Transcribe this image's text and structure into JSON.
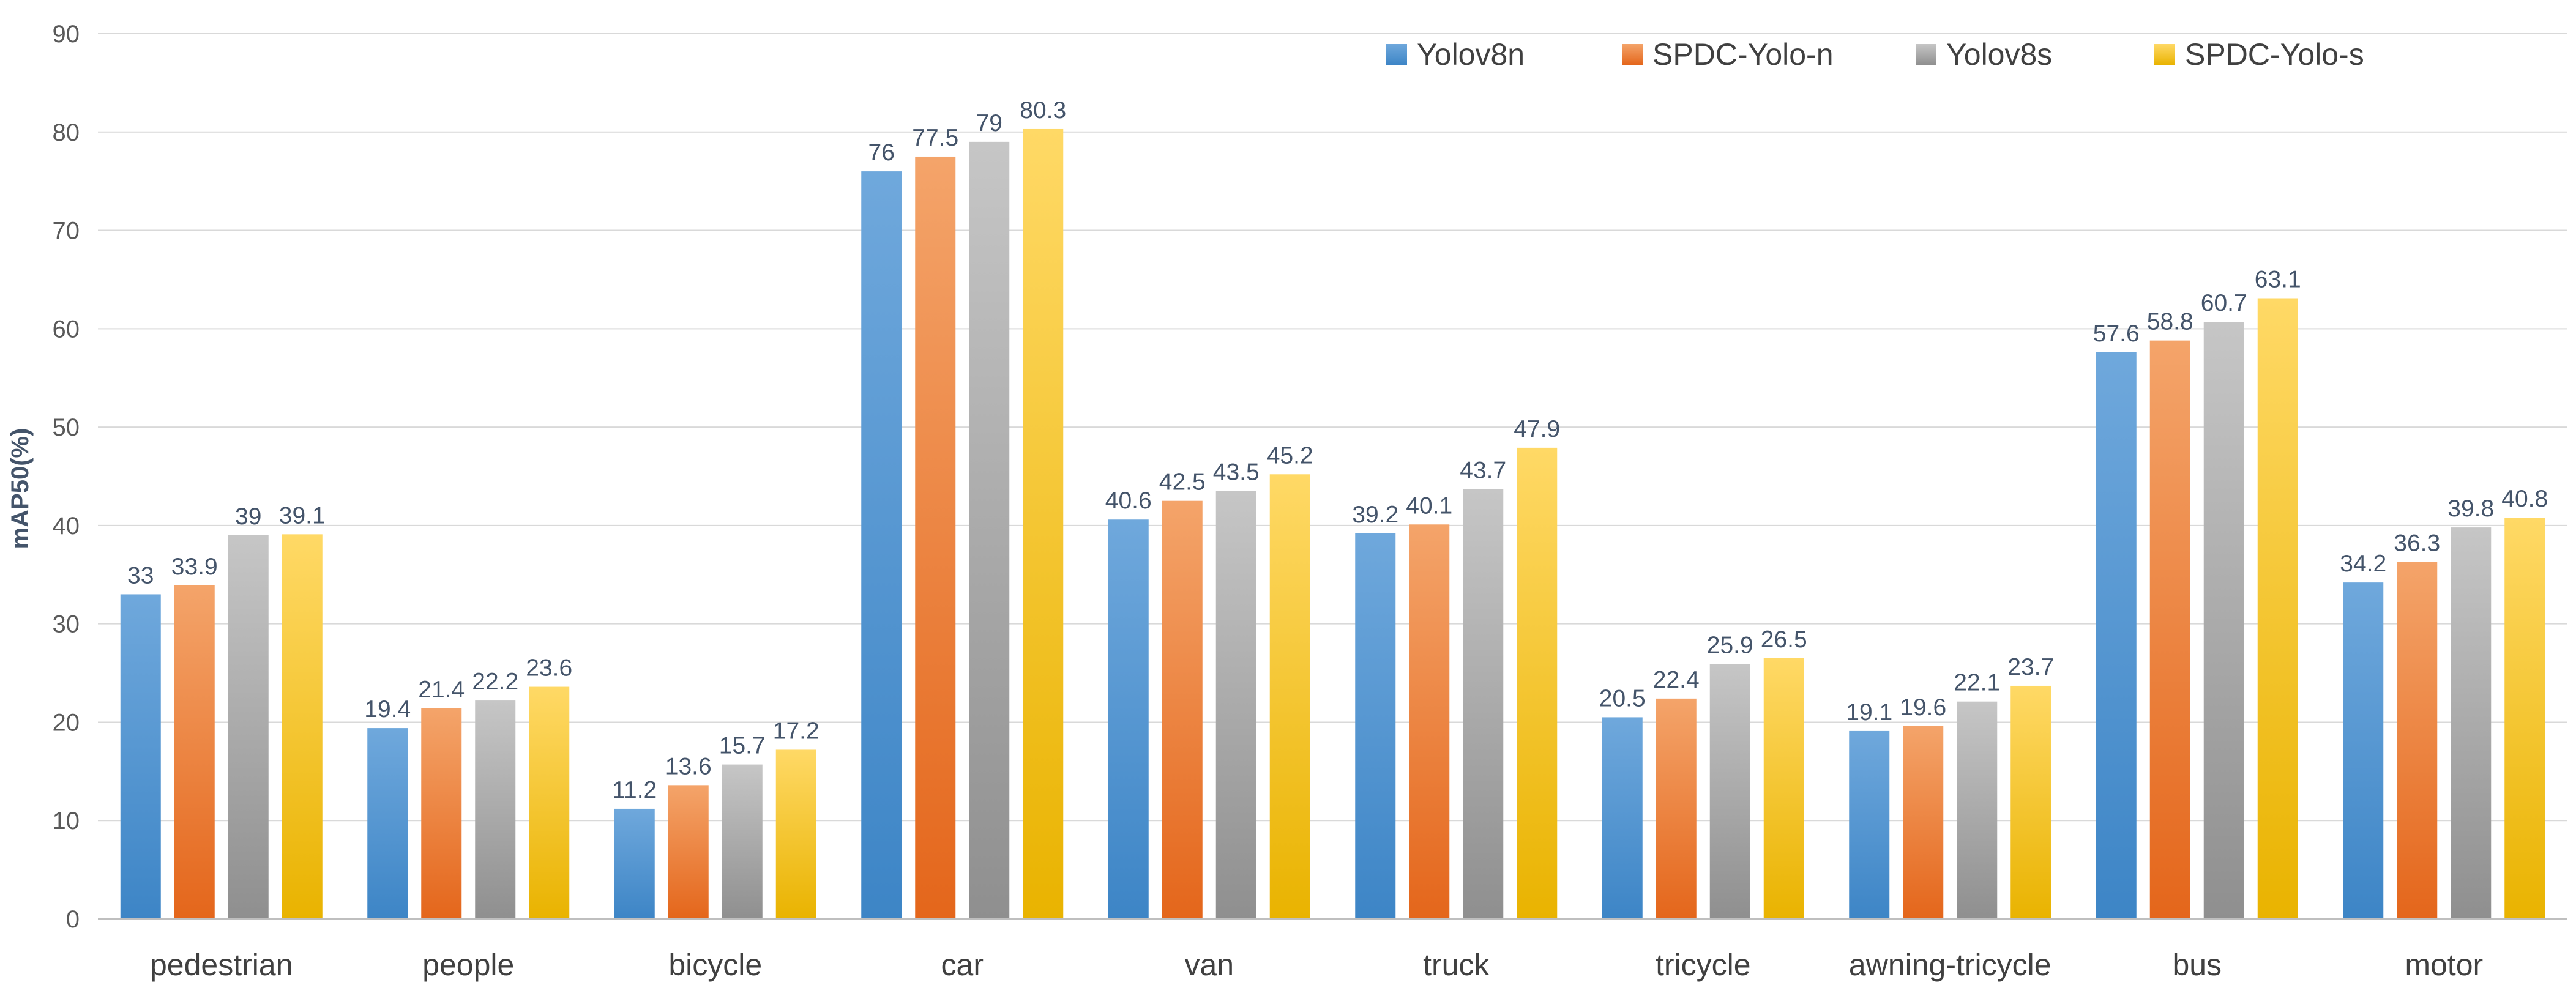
{
  "chart_data": {
    "type": "bar",
    "title": "",
    "xlabel": "",
    "ylabel": "mAP50(%)",
    "ylim": [
      0,
      90
    ],
    "yticks": [
      0,
      10,
      20,
      30,
      40,
      50,
      60,
      70,
      80,
      90
    ],
    "grid": true,
    "legend_position": "top-right",
    "categories": [
      "pedestrian",
      "people",
      "bicycle",
      "car",
      "van",
      "truck",
      "tricycle",
      "awning-tricycle",
      "bus",
      "motor"
    ],
    "series": [
      {
        "name": "Yolov8n",
        "color_top": "#6FA8DC",
        "color_bottom": "#3D85C6",
        "values": [
          33,
          19.4,
          11.2,
          76,
          40.6,
          39.2,
          20.5,
          19.1,
          57.6,
          34.2
        ],
        "labels": [
          "33",
          "19.4",
          "11.2",
          "76",
          "40.6",
          "39.2",
          "20.5",
          "19.1",
          "57.6",
          "34.2"
        ]
      },
      {
        "name": "SPDC-Yolo-n",
        "color_top": "#F4A46A",
        "color_bottom": "#E4661B",
        "values": [
          33.9,
          21.4,
          13.6,
          77.5,
          42.5,
          40.1,
          22.4,
          19.6,
          58.8,
          36.3
        ],
        "labels": [
          "33.9",
          "21.4",
          "13.6",
          "77.5",
          "42.5",
          "40.1",
          "22.4",
          "19.6",
          "58.8",
          "36.3"
        ]
      },
      {
        "name": "Yolov8s",
        "color_top": "#C6C6C6",
        "color_bottom": "#8F8F8F",
        "values": [
          39,
          22.2,
          15.7,
          79,
          43.5,
          43.7,
          25.9,
          22.1,
          60.7,
          39.8
        ],
        "labels": [
          "39",
          "22.2",
          "15.7",
          "79",
          "43.5",
          "43.7",
          "25.9",
          "22.1",
          "60.7",
          "39.8"
        ]
      },
      {
        "name": "SPDC-Yolo-s",
        "color_top": "#FFD966",
        "color_bottom": "#E9B300",
        "values": [
          39.1,
          23.6,
          17.2,
          80.3,
          45.2,
          47.9,
          26.5,
          23.7,
          63.1,
          40.8
        ],
        "labels": [
          "39.1",
          "23.6",
          "17.2",
          "80.3",
          "45.2",
          "47.9",
          "26.5",
          "23.7",
          "63.1",
          "40.8"
        ]
      }
    ]
  },
  "style": {
    "gridline_color": "#D9D9D9",
    "axis_color": "#BFBFBF",
    "background": "#FFFFFF"
  }
}
